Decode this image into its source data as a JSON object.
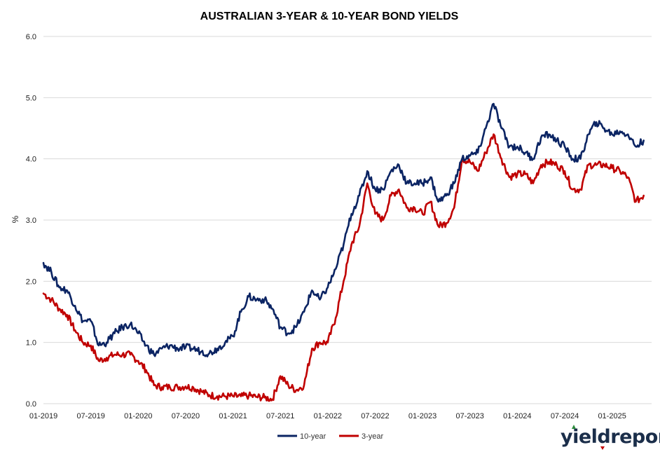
{
  "chart_data": {
    "type": "line",
    "title": "AUSTRALIAN 3-YEAR & 10-YEAR BOND YIELDS",
    "xlabel": "",
    "ylabel": "%",
    "ylim": [
      0,
      6
    ],
    "yticks": [
      "0.0",
      "1.0",
      "2.0",
      "3.0",
      "4.0",
      "5.0",
      "6.0"
    ],
    "xticks": [
      "01-2019",
      "07-2019",
      "01-2020",
      "07-2020",
      "01-2021",
      "07-2021",
      "01-2022",
      "07-2022",
      "01-2023",
      "07-2023",
      "01-2024",
      "07-2024",
      "01-2025"
    ],
    "grid": true,
    "legend_position": "bottom",
    "series": [
      {
        "name": "10-year",
        "color": "#0b2463",
        "x": [
          "2019-01",
          "2019-02",
          "2019-03",
          "2019-04",
          "2019-05",
          "2019-06",
          "2019-07",
          "2019-08",
          "2019-09",
          "2019-10",
          "2019-11",
          "2019-12",
          "2020-01",
          "2020-02",
          "2020-03",
          "2020-04",
          "2020-05",
          "2020-06",
          "2020-07",
          "2020-08",
          "2020-09",
          "2020-10",
          "2020-11",
          "2020-12",
          "2021-01",
          "2021-02",
          "2021-03",
          "2021-04",
          "2021-05",
          "2021-06",
          "2021-07",
          "2021-08",
          "2021-09",
          "2021-10",
          "2021-11",
          "2021-12",
          "2022-01",
          "2022-02",
          "2022-03",
          "2022-04",
          "2022-05",
          "2022-06",
          "2022-07",
          "2022-08",
          "2022-09",
          "2022-10",
          "2022-11",
          "2022-12",
          "2023-01",
          "2023-02",
          "2023-03",
          "2023-04",
          "2023-05",
          "2023-06",
          "2023-07",
          "2023-08",
          "2023-09",
          "2023-10",
          "2023-11",
          "2023-12",
          "2024-01",
          "2024-02",
          "2024-03",
          "2024-04",
          "2024-05",
          "2024-06",
          "2024-07",
          "2024-08",
          "2024-09",
          "2024-10",
          "2024-11",
          "2024-12",
          "2025-01",
          "2025-02",
          "2025-03",
          "2025-04",
          "2025-05"
        ],
        "values": [
          2.3,
          2.15,
          1.9,
          1.85,
          1.6,
          1.35,
          1.35,
          0.95,
          1.0,
          1.15,
          1.25,
          1.3,
          1.15,
          0.95,
          0.8,
          0.9,
          0.95,
          0.9,
          0.92,
          0.9,
          0.85,
          0.82,
          0.9,
          1.0,
          1.1,
          1.5,
          1.75,
          1.7,
          1.7,
          1.55,
          1.25,
          1.15,
          1.25,
          1.5,
          1.85,
          1.7,
          1.9,
          2.2,
          2.6,
          3.1,
          3.4,
          3.8,
          3.5,
          3.5,
          3.8,
          3.9,
          3.6,
          3.6,
          3.6,
          3.7,
          3.3,
          3.4,
          3.6,
          4.0,
          4.05,
          4.1,
          4.5,
          4.9,
          4.5,
          4.2,
          4.2,
          4.1,
          4.0,
          4.35,
          4.4,
          4.3,
          4.2,
          4.0,
          4.0,
          4.4,
          4.6,
          4.5,
          4.4,
          4.45,
          4.4,
          4.2,
          4.3
        ]
      },
      {
        "name": "3-year",
        "color": "#c00000",
        "x": [
          "2019-01",
          "2019-02",
          "2019-03",
          "2019-04",
          "2019-05",
          "2019-06",
          "2019-07",
          "2019-08",
          "2019-09",
          "2019-10",
          "2019-11",
          "2019-12",
          "2020-01",
          "2020-02",
          "2020-03",
          "2020-04",
          "2020-05",
          "2020-06",
          "2020-07",
          "2020-08",
          "2020-09",
          "2020-10",
          "2020-11",
          "2020-12",
          "2021-01",
          "2021-02",
          "2021-03",
          "2021-04",
          "2021-05",
          "2021-06",
          "2021-07",
          "2021-08",
          "2021-09",
          "2021-10",
          "2021-11",
          "2021-12",
          "2022-01",
          "2022-02",
          "2022-03",
          "2022-04",
          "2022-05",
          "2022-06",
          "2022-07",
          "2022-08",
          "2022-09",
          "2022-10",
          "2022-11",
          "2022-12",
          "2023-01",
          "2023-02",
          "2023-03",
          "2023-04",
          "2023-05",
          "2023-06",
          "2023-07",
          "2023-08",
          "2023-09",
          "2023-10",
          "2023-11",
          "2023-12",
          "2024-01",
          "2024-02",
          "2024-03",
          "2024-04",
          "2024-05",
          "2024-06",
          "2024-07",
          "2024-08",
          "2024-09",
          "2024-10",
          "2024-11",
          "2024-12",
          "2025-01",
          "2025-02",
          "2025-03",
          "2025-04",
          "2025-05"
        ],
        "values": [
          1.8,
          1.7,
          1.55,
          1.45,
          1.2,
          1.0,
          0.95,
          0.7,
          0.75,
          0.8,
          0.8,
          0.8,
          0.7,
          0.55,
          0.3,
          0.27,
          0.27,
          0.27,
          0.28,
          0.26,
          0.2,
          0.14,
          0.12,
          0.12,
          0.12,
          0.12,
          0.13,
          0.11,
          0.1,
          0.07,
          0.45,
          0.3,
          0.22,
          0.3,
          0.9,
          1.0,
          1.0,
          1.4,
          2.0,
          2.6,
          2.9,
          3.6,
          3.1,
          3.0,
          3.4,
          3.5,
          3.2,
          3.2,
          3.1,
          3.3,
          2.9,
          2.95,
          3.2,
          4.0,
          3.95,
          3.8,
          4.1,
          4.4,
          4.0,
          3.7,
          3.75,
          3.75,
          3.6,
          3.9,
          3.95,
          3.9,
          3.8,
          3.5,
          3.5,
          3.9,
          3.9,
          3.9,
          3.85,
          3.8,
          3.7,
          3.3,
          3.4
        ]
      }
    ]
  },
  "brand": {
    "text": "yieldreport",
    "color": "#1b2e4a",
    "accent_color": "#2e8b3e"
  }
}
